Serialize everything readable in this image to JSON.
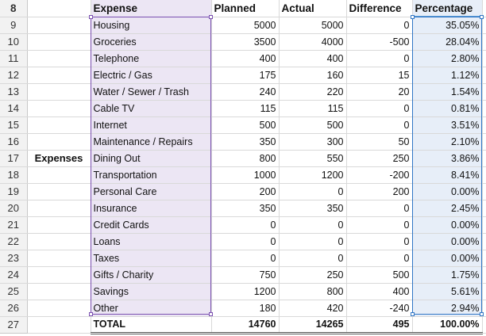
{
  "row_numbers": [
    "8",
    "9",
    "10",
    "11",
    "12",
    "13",
    "14",
    "15",
    "16",
    "17",
    "18",
    "19",
    "20",
    "21",
    "22",
    "23",
    "24",
    "25",
    "26",
    "27"
  ],
  "section_label": "Expenses",
  "headers": {
    "expense": "Expense",
    "planned": "Planned",
    "actual": "Actual",
    "difference": "Difference",
    "percentage": "Percentage"
  },
  "rows": [
    {
      "expense": "Housing",
      "planned": "5000",
      "actual": "5000",
      "difference": "0",
      "percentage": "35.05%"
    },
    {
      "expense": "Groceries",
      "planned": "3500",
      "actual": "4000",
      "difference": "-500",
      "percentage": "28.04%"
    },
    {
      "expense": "Telephone",
      "planned": "400",
      "actual": "400",
      "difference": "0",
      "percentage": "2.80%"
    },
    {
      "expense": "Electric / Gas",
      "planned": "175",
      "actual": "160",
      "difference": "15",
      "percentage": "1.12%"
    },
    {
      "expense": "Water / Sewer / Trash",
      "planned": "240",
      "actual": "220",
      "difference": "20",
      "percentage": "1.54%"
    },
    {
      "expense": "Cable TV",
      "planned": "115",
      "actual": "115",
      "difference": "0",
      "percentage": "0.81%"
    },
    {
      "expense": "Internet",
      "planned": "500",
      "actual": "500",
      "difference": "0",
      "percentage": "3.51%"
    },
    {
      "expense": "Maintenance / Repairs",
      "planned": "350",
      "actual": "300",
      "difference": "50",
      "percentage": "2.10%"
    },
    {
      "expense": "Dining Out",
      "planned": "800",
      "actual": "550",
      "difference": "250",
      "percentage": "3.86%"
    },
    {
      "expense": "Transportation",
      "planned": "1000",
      "actual": "1200",
      "difference": "-200",
      "percentage": "8.41%"
    },
    {
      "expense": "Personal Care",
      "planned": "200",
      "actual": "0",
      "difference": "200",
      "percentage": "0.00%"
    },
    {
      "expense": "Insurance",
      "planned": "350",
      "actual": "350",
      "difference": "0",
      "percentage": "2.45%"
    },
    {
      "expense": "Credit Cards",
      "planned": "0",
      "actual": "0",
      "difference": "0",
      "percentage": "0.00%"
    },
    {
      "expense": "Loans",
      "planned": "0",
      "actual": "0",
      "difference": "0",
      "percentage": "0.00%"
    },
    {
      "expense": "Taxes",
      "planned": "0",
      "actual": "0",
      "difference": "0",
      "percentage": "0.00%"
    },
    {
      "expense": "Gifts / Charity",
      "planned": "750",
      "actual": "250",
      "difference": "500",
      "percentage": "1.75%"
    },
    {
      "expense": "Savings",
      "planned": "1200",
      "actual": "800",
      "difference": "400",
      "percentage": "5.61%"
    },
    {
      "expense": "Other",
      "planned": "180",
      "actual": "420",
      "difference": "-240",
      "percentage": "2.94%"
    }
  ],
  "total": {
    "label": "TOTAL",
    "planned": "14760",
    "actual": "14265",
    "difference": "495",
    "percentage": "100.00%"
  },
  "colors": {
    "expense_selection": "#7a4fb0",
    "expense_fill": "#ece6f4",
    "percentage_selection": "#2f75c5",
    "percentage_fill": "#e7eef8"
  }
}
